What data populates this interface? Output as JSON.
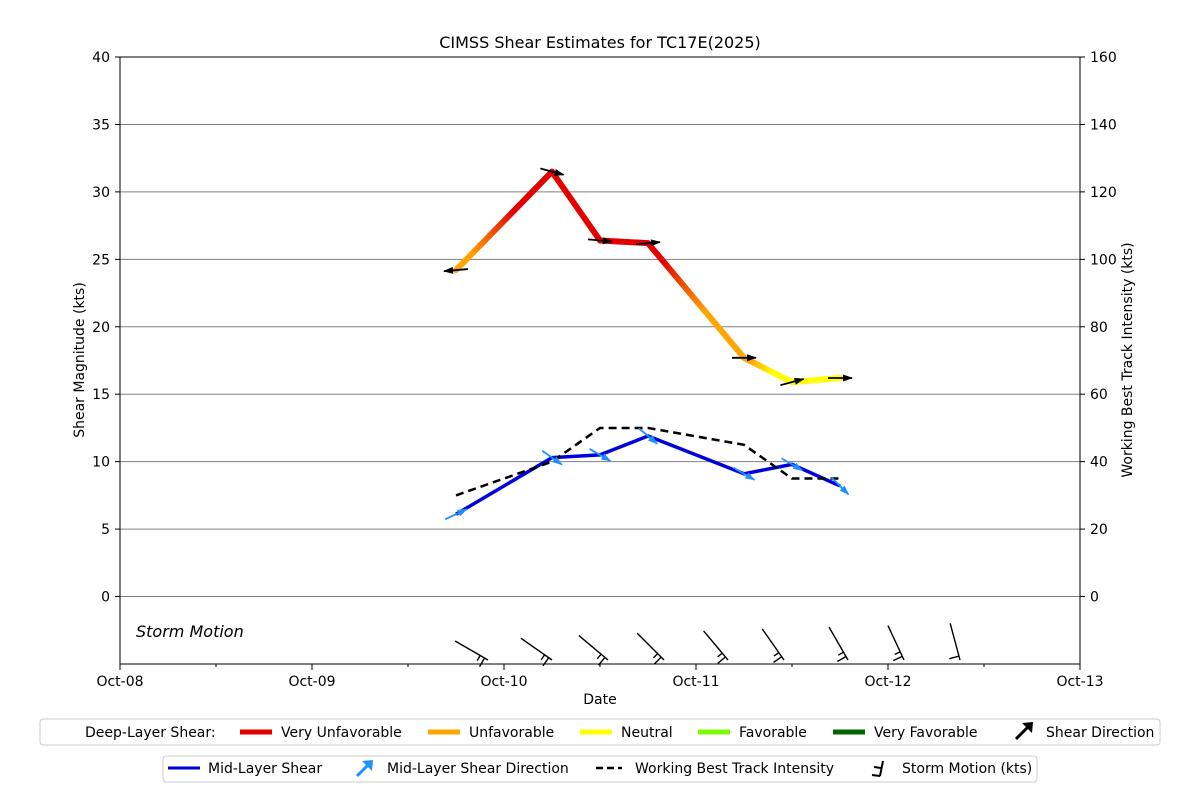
{
  "chart_data": {
    "type": "line",
    "title": "CIMSS Shear Estimates for TC17E(2025)",
    "xlabel": "Date",
    "ylabel": "Shear Magnitude (kts)",
    "ylabel_right": "Working Best Track Intensity (kts)",
    "x_ticks": [
      "Oct-08",
      "Oct-09",
      "Oct-10",
      "Oct-11",
      "Oct-12",
      "Oct-13"
    ],
    "xlim": [
      "2025-10-08 00:00",
      "2025-10-13 00:00"
    ],
    "ylim": [
      -5,
      40
    ],
    "y_ticks": [
      0,
      5,
      10,
      15,
      20,
      25,
      30,
      35,
      40
    ],
    "ylim_right": [
      -20,
      160
    ],
    "y_ticks_right": [
      0,
      20,
      40,
      60,
      80,
      100,
      120,
      140,
      160
    ],
    "grid": "horizontal",
    "storm_motion_label": "Storm Motion",
    "series": [
      {
        "name": "Deep-Layer Shear",
        "axis": "left",
        "x": [
          "2025-10-09 18:00",
          "2025-10-10 06:00",
          "2025-10-10 12:00",
          "2025-10-10 18:00",
          "2025-10-11 06:00",
          "2025-10-11 12:00",
          "2025-10-11 18:00"
        ],
        "y": [
          24.2,
          31.5,
          26.4,
          26.2,
          17.7,
          15.9,
          16.2
        ],
        "segment_colors": [
          "orange-red",
          "red",
          "red",
          "red-orange",
          "orange-yellow",
          "yellow",
          "yellow"
        ]
      },
      {
        "name": "Mid-Layer Shear",
        "axis": "left",
        "x": [
          "2025-10-09 18:00",
          "2025-10-10 06:00",
          "2025-10-10 12:00",
          "2025-10-10 18:00",
          "2025-10-11 06:00",
          "2025-10-11 12:00",
          "2025-10-11 18:00"
        ],
        "y": [
          6.1,
          10.3,
          10.5,
          11.9,
          9.1,
          9.8,
          8.2
        ]
      },
      {
        "name": "Working Best Track Intensity",
        "axis": "right",
        "x": [
          "2025-10-09 18:00",
          "2025-10-10 06:00",
          "2025-10-10 12:00",
          "2025-10-10 18:00",
          "2025-10-11 06:00",
          "2025-10-11 12:00",
          "2025-10-11 18:00"
        ],
        "y": [
          30,
          40,
          50,
          50,
          45,
          35,
          35
        ]
      }
    ],
    "deep_layer_shear_direction_from_deg": [
      85,
      285,
      275,
      265,
      270,
      255,
      270
    ],
    "mid_layer_shear_direction_from_deg": [
      245,
      305,
      300,
      310,
      300,
      300,
      315
    ],
    "storm_motion": [
      {
        "time": "2025-10-09 22:00",
        "dir_deg": 300,
        "speed_kts": 15
      },
      {
        "time": "2025-10-10 06:00",
        "dir_deg": 305,
        "speed_kts": 15
      },
      {
        "time": "2025-10-10 13:00",
        "dir_deg": 310,
        "speed_kts": 15
      },
      {
        "time": "2025-10-10 20:00",
        "dir_deg": 315,
        "speed_kts": 15
      },
      {
        "time": "2025-10-11 04:00",
        "dir_deg": 320,
        "speed_kts": 15
      },
      {
        "time": "2025-10-11 11:00",
        "dir_deg": 325,
        "speed_kts": 15
      },
      {
        "time": "2025-10-11 19:00",
        "dir_deg": 330,
        "speed_kts": 15
      },
      {
        "time": "2025-10-12 02:00",
        "dir_deg": 335,
        "speed_kts": 15
      },
      {
        "time": "2025-10-12 09:00",
        "dir_deg": 345,
        "speed_kts": 10
      }
    ],
    "legend_deep": {
      "title": "Deep-Layer Shear:",
      "items": [
        {
          "label": "Very Unfavorable",
          "color": "#e50000"
        },
        {
          "label": "Unfavorable",
          "color": "#ffa500"
        },
        {
          "label": "Neutral",
          "color": "#ffff00"
        },
        {
          "label": "Favorable",
          "color": "#7cfc00"
        },
        {
          "label": "Very Favorable",
          "color": "#006400"
        },
        {
          "label": "Shear Direction",
          "color": "#000000"
        }
      ]
    },
    "legend_other": {
      "items": [
        {
          "label": "Mid-Layer Shear",
          "color": "#0000dd"
        },
        {
          "label": "Mid-Layer Shear Direction",
          "color": "#1e90ff"
        },
        {
          "label": "Working Best Track Intensity",
          "color": "#000000"
        },
        {
          "label": "Storm Motion (kts)",
          "color": "#000000"
        }
      ]
    },
    "colors": {
      "very_unfavorable": "#e50000",
      "unfavorable": "#ffa500",
      "neutral": "#ffff00",
      "mid_layer": "#0000dd",
      "mid_arrow": "#1e90ff",
      "grid": "#808080"
    }
  }
}
